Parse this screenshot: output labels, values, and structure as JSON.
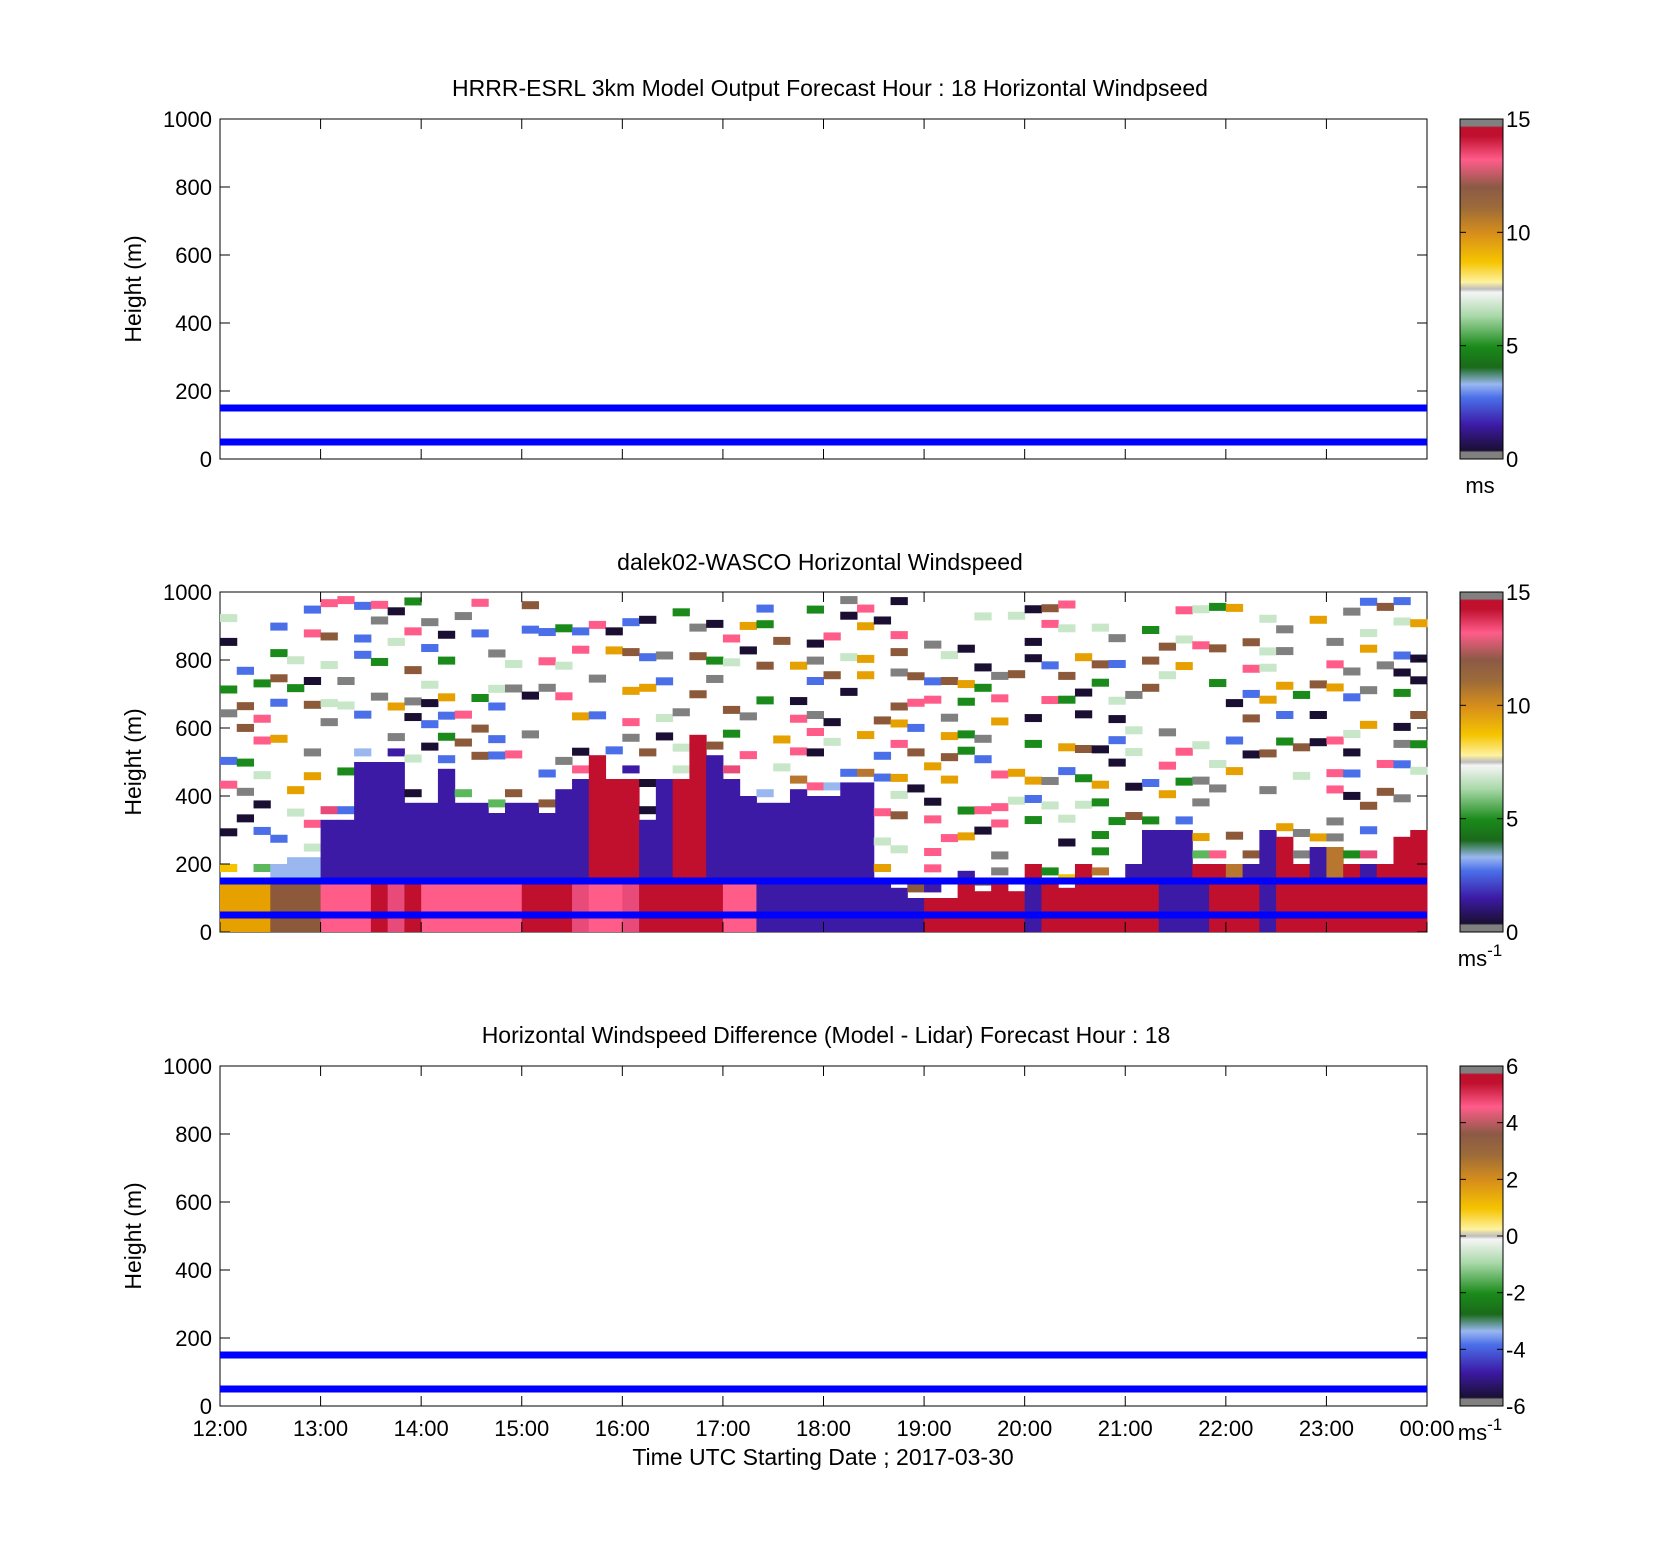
{
  "chart_data": [
    {
      "type": "heatmap",
      "title": "HRRR-ESRL 3km Model Output   Forecast Hour : 18 Horizontal Windpseed",
      "ylabel": "Height (m)",
      "ylim": [
        0,
        1000
      ],
      "yticks": [
        "0",
        "200",
        "400",
        "600",
        "800",
        "1000"
      ],
      "xlim": [
        "12:00",
        "00:00"
      ],
      "colorbar": {
        "range": [
          0,
          15
        ],
        "ticks": [
          "0",
          "5",
          "10",
          "15"
        ],
        "unit": "ms"
      },
      "reference_lines": [
        50,
        150
      ],
      "cells": []
    },
    {
      "type": "heatmap",
      "title": "dalek02-WASCO  Horizontal Windspeed",
      "ylabel": "Height (m)",
      "ylim": [
        0,
        1000
      ],
      "yticks": [
        "0",
        "200",
        "400",
        "600",
        "800",
        "1000"
      ],
      "xlim": [
        "12:00",
        "00:00"
      ],
      "colorbar": {
        "range": [
          0,
          15
        ],
        "ticks": [
          "0",
          "5",
          "10",
          "15"
        ],
        "unit": "ms",
        "unit_sup": "-1"
      },
      "reference_lines": [
        50,
        150
      ],
      "value_columns_note": "approximate windspeed (m/s) by 10-minute column: [start hour, column top (m), low-level speed, upper speed]",
      "columns": [
        [
          12.0,
          160,
          9,
          4
        ],
        [
          12.17,
          160,
          9,
          4
        ],
        [
          12.33,
          160,
          9,
          4
        ],
        [
          12.5,
          200,
          11,
          4
        ],
        [
          12.67,
          220,
          11,
          4
        ],
        [
          12.83,
          220,
          11,
          4
        ],
        [
          13.0,
          330,
          13,
          2
        ],
        [
          13.17,
          330,
          13,
          2
        ],
        [
          13.33,
          500,
          13,
          2
        ],
        [
          13.5,
          500,
          14,
          2
        ],
        [
          13.67,
          500,
          12,
          2
        ],
        [
          13.83,
          380,
          14,
          2
        ],
        [
          14.0,
          380,
          13,
          2
        ],
        [
          14.17,
          480,
          13,
          2
        ],
        [
          14.33,
          380,
          13,
          2
        ],
        [
          14.5,
          380,
          13,
          2
        ],
        [
          14.67,
          350,
          13,
          2
        ],
        [
          14.83,
          380,
          13,
          2
        ],
        [
          15.0,
          380,
          14,
          2
        ],
        [
          15.17,
          350,
          14,
          2
        ],
        [
          15.33,
          420,
          14,
          2
        ],
        [
          15.5,
          450,
          12,
          2
        ],
        [
          15.67,
          520,
          13,
          14
        ],
        [
          15.83,
          450,
          13,
          14
        ],
        [
          16.0,
          450,
          12,
          14
        ],
        [
          16.17,
          330,
          14,
          2
        ],
        [
          16.33,
          450,
          14,
          2
        ],
        [
          16.5,
          450,
          14,
          14
        ],
        [
          16.67,
          580,
          14,
          14
        ],
        [
          16.83,
          520,
          14,
          2
        ],
        [
          17.0,
          450,
          13,
          2
        ],
        [
          17.17,
          400,
          13,
          2
        ],
        [
          17.33,
          380,
          2,
          2
        ],
        [
          17.5,
          380,
          2,
          2
        ],
        [
          17.67,
          420,
          2,
          2
        ],
        [
          17.83,
          400,
          2,
          2
        ],
        [
          18.0,
          400,
          2,
          2
        ],
        [
          18.17,
          440,
          2,
          2
        ],
        [
          18.33,
          440,
          2,
          2
        ],
        [
          18.5,
          160,
          2,
          2
        ],
        [
          18.67,
          130,
          2,
          2
        ],
        [
          18.83,
          100,
          2,
          2
        ],
        [
          19.0,
          100,
          14,
          2
        ],
        [
          19.17,
          100,
          14,
          2
        ],
        [
          19.33,
          180,
          14,
          2
        ],
        [
          19.5,
          120,
          14,
          2
        ],
        [
          19.67,
          150,
          14,
          2
        ],
        [
          19.83,
          120,
          14,
          2
        ],
        [
          20.0,
          200,
          2,
          14
        ],
        [
          20.17,
          150,
          14,
          2
        ],
        [
          20.33,
          130,
          14,
          2
        ],
        [
          20.5,
          200,
          14,
          14
        ],
        [
          20.67,
          150,
          14,
          2
        ],
        [
          20.83,
          150,
          14,
          2
        ],
        [
          21.0,
          200,
          14,
          2
        ],
        [
          21.17,
          300,
          14,
          2
        ],
        [
          21.33,
          300,
          2,
          2
        ],
        [
          21.5,
          300,
          2,
          2
        ],
        [
          21.67,
          200,
          2,
          14
        ],
        [
          21.83,
          200,
          14,
          14
        ],
        [
          22.0,
          200,
          14,
          10
        ],
        [
          22.17,
          200,
          14,
          2
        ],
        [
          22.33,
          300,
          2,
          2
        ],
        [
          22.5,
          280,
          14,
          14
        ],
        [
          22.67,
          200,
          14,
          14
        ],
        [
          22.83,
          250,
          14,
          2
        ],
        [
          23.0,
          250,
          14,
          10
        ],
        [
          23.17,
          200,
          14,
          14
        ],
        [
          23.33,
          200,
          14,
          2
        ],
        [
          23.5,
          200,
          14,
          14
        ],
        [
          23.67,
          280,
          14,
          14
        ],
        [
          23.83,
          300,
          14,
          14
        ]
      ]
    },
    {
      "type": "heatmap",
      "title": "Horizontal Windspeed Difference (Model - Lidar) Forecast Hour : 18",
      "ylabel": "Height (m)",
      "xlabel": "Time UTC  Starting Date ; 2017-03-30",
      "ylim": [
        0,
        1000
      ],
      "yticks": [
        "0",
        "200",
        "400",
        "600",
        "800",
        "1000"
      ],
      "xticks": [
        "12:00",
        "13:00",
        "14:00",
        "15:00",
        "16:00",
        "17:00",
        "18:00",
        "19:00",
        "20:00",
        "21:00",
        "22:00",
        "23:00",
        "00:00"
      ],
      "colorbar": {
        "range": [
          -6,
          6
        ],
        "ticks": [
          "-6",
          "-4",
          "-2",
          "0",
          "2",
          "4",
          "6"
        ],
        "unit": "ms",
        "unit_sup": "-1"
      },
      "reference_lines": [
        50,
        150
      ],
      "cells": []
    }
  ],
  "colors": {
    "reference_line": "#0000ff",
    "colormap": [
      "#808080",
      "#1a0f33",
      "#3d1aa6",
      "#4a6fe8",
      "#9ab7f0",
      "#1a8a1a",
      "#5cb85c",
      "#c8e6c8",
      "#e6e6e6",
      "#f5c400",
      "#e6a100",
      "#b8762e",
      "#8c5a3a",
      "#e84a7a",
      "#ff5c8a",
      "#c0102e",
      "#808080"
    ]
  }
}
